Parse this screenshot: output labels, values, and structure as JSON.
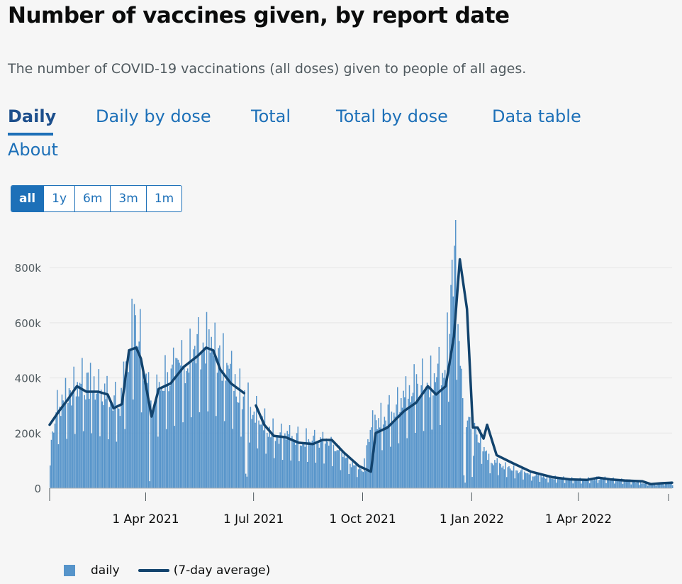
{
  "page": {
    "title": "Number of vaccines given, by report date",
    "subtitle": "The number of COVID-19 vaccinations (all doses) given to people of all ages."
  },
  "tabs": [
    {
      "label": "Daily",
      "active": true
    },
    {
      "label": "Daily by dose",
      "active": false
    },
    {
      "label": "Total",
      "active": false
    },
    {
      "label": "Total by dose",
      "active": false
    },
    {
      "label": "Data table",
      "active": false
    },
    {
      "label": "About",
      "active": false
    }
  ],
  "range_buttons": [
    {
      "label": "all",
      "selected": true
    },
    {
      "label": "1y",
      "selected": false
    },
    {
      "label": "6m",
      "selected": false
    },
    {
      "label": "3m",
      "selected": false
    },
    {
      "label": "1m",
      "selected": false
    }
  ],
  "legend": {
    "daily_label": "daily",
    "average_label": "(7-day average)"
  },
  "colors": {
    "bar": "#5694ca",
    "line": "#12436d",
    "accent": "#1d70b8",
    "grid": "#e6e6e6"
  },
  "chart_data": {
    "type": "bar",
    "title": "Number of vaccines given, by report date",
    "xlabel": "",
    "ylabel": "",
    "x_range": [
      "2021-01-10",
      "2022-06-19"
    ],
    "ylim": [
      0,
      870000
    ],
    "y_ticks": [
      0,
      200000,
      400000,
      600000,
      800000
    ],
    "y_tick_labels": [
      "0",
      "200k",
      "400k",
      "600k",
      "800k"
    ],
    "x_ticks": [
      "2021-04-01",
      "2021-07-01",
      "2021-10-01",
      "2022-01-01",
      "2022-04-01"
    ],
    "x_tick_labels": [
      "1 Apr 2021",
      "1 Jul 2021",
      "1 Oct 2021",
      "1 Jan 2022",
      "1 Apr 2022"
    ],
    "grid": true,
    "series": [
      {
        "name": "daily",
        "kind": "bar",
        "approx_weekly_levels": [
          [
            "2021-01-10",
            150000
          ],
          [
            "2021-01-15",
            280000
          ],
          [
            "2021-01-25",
            330000
          ],
          [
            "2021-02-05",
            380000
          ],
          [
            "2021-02-15",
            360000
          ],
          [
            "2021-03-01",
            320000
          ],
          [
            "2021-03-10",
            300000
          ],
          [
            "2021-03-18",
            480000
          ],
          [
            "2021-03-22",
            620000
          ],
          [
            "2021-03-29",
            480000
          ],
          [
            "2021-04-05",
            280000
          ],
          [
            "2021-04-15",
            380000
          ],
          [
            "2021-05-01",
            430000
          ],
          [
            "2021-05-20",
            520000
          ],
          [
            "2021-06-05",
            450000
          ],
          [
            "2021-06-20",
            340000
          ],
          [
            "2021-07-08",
            240000
          ],
          [
            "2021-07-20",
            190000
          ],
          [
            "2021-08-05",
            180000
          ],
          [
            "2021-08-20",
            170000
          ],
          [
            "2021-09-01",
            160000
          ],
          [
            "2021-09-20",
            90000
          ],
          [
            "2021-10-01",
            60000
          ],
          [
            "2021-10-07",
            220000
          ],
          [
            "2021-10-20",
            260000
          ],
          [
            "2021-11-01",
            300000
          ],
          [
            "2021-11-15",
            370000
          ],
          [
            "2021-12-01",
            390000
          ],
          [
            "2021-12-10",
            450000
          ],
          [
            "2021-12-17",
            870000
          ],
          [
            "2021-12-25",
            250000
          ],
          [
            "2022-01-05",
            200000
          ],
          [
            "2022-01-15",
            100000
          ],
          [
            "2022-02-01",
            70000
          ],
          [
            "2022-03-01",
            40000
          ],
          [
            "2022-04-01",
            30000
          ],
          [
            "2022-04-20",
            35000
          ],
          [
            "2022-05-15",
            25000
          ],
          [
            "2022-06-01",
            15000
          ],
          [
            "2022-06-19",
            20000
          ]
        ]
      },
      {
        "name": "(7-day average)",
        "kind": "line",
        "segments": [
          [
            [
              "2021-01-10",
              230000
            ],
            [
              "2021-01-18",
              280000
            ],
            [
              "2021-01-25",
              320000
            ],
            [
              "2021-02-02",
              370000
            ],
            [
              "2021-02-10",
              350000
            ],
            [
              "2021-02-20",
              350000
            ],
            [
              "2021-02-28",
              340000
            ],
            [
              "2021-03-05",
              290000
            ],
            [
              "2021-03-12",
              305000
            ],
            [
              "2021-03-18",
              500000
            ],
            [
              "2021-03-24",
              510000
            ],
            [
              "2021-03-28",
              470000
            ],
            [
              "2021-04-06",
              260000
            ],
            [
              "2021-04-12",
              360000
            ],
            [
              "2021-04-22",
              380000
            ],
            [
              "2021-05-03",
              440000
            ],
            [
              "2021-05-15",
              480000
            ],
            [
              "2021-05-22",
              510000
            ],
            [
              "2021-05-28",
              500000
            ],
            [
              "2021-06-03",
              430000
            ],
            [
              "2021-06-12",
              380000
            ],
            [
              "2021-06-23",
              345000
            ]
          ],
          [
            [
              "2021-07-03",
              300000
            ],
            [
              "2021-07-10",
              230000
            ],
            [
              "2021-07-18",
              190000
            ],
            [
              "2021-07-28",
              185000
            ],
            [
              "2021-08-08",
              165000
            ],
            [
              "2021-08-20",
              160000
            ],
            [
              "2021-08-28",
              175000
            ],
            [
              "2021-09-05",
              175000
            ],
            [
              "2021-09-15",
              130000
            ],
            [
              "2021-09-28",
              80000
            ],
            [
              "2021-10-08",
              60000
            ],
            [
              "2021-10-12",
              200000
            ],
            [
              "2021-10-22",
              220000
            ],
            [
              "2021-11-05",
              280000
            ],
            [
              "2021-11-15",
              310000
            ],
            [
              "2021-11-25",
              370000
            ],
            [
              "2021-12-02",
              340000
            ],
            [
              "2021-12-10",
              370000
            ],
            [
              "2021-12-17",
              550000
            ],
            [
              "2021-12-22",
              830000
            ],
            [
              "2021-12-28",
              650000
            ],
            [
              "2022-01-02",
              220000
            ],
            [
              "2022-01-06",
              220000
            ],
            [
              "2022-01-11",
              180000
            ],
            [
              "2022-01-14",
              230000
            ],
            [
              "2022-01-22",
              120000
            ],
            [
              "2022-02-05",
              90000
            ],
            [
              "2022-02-20",
              60000
            ],
            [
              "2022-03-10",
              40000
            ],
            [
              "2022-03-25",
              32000
            ],
            [
              "2022-04-08",
              30000
            ],
            [
              "2022-04-18",
              38000
            ],
            [
              "2022-04-28",
              32000
            ],
            [
              "2022-05-10",
              28000
            ],
            [
              "2022-05-25",
              25000
            ],
            [
              "2022-06-01",
              15000
            ],
            [
              "2022-06-10",
              18000
            ],
            [
              "2022-06-19",
              20000
            ]
          ]
        ]
      }
    ]
  }
}
